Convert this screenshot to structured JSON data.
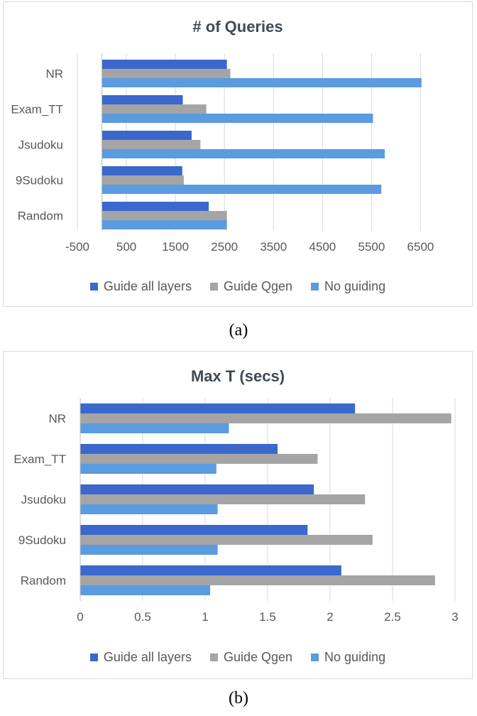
{
  "captions": [
    "(a)",
    "(b)"
  ],
  "legend": [
    {
      "label": "Guide all layers",
      "color": "#3a68cc"
    },
    {
      "label": "Guide Qgen",
      "color": "#a5a5a5"
    },
    {
      "label": "No guiding",
      "color": "#5b9be0"
    }
  ],
  "chart_data": [
    {
      "type": "bar",
      "orientation": "horizontal",
      "title": "# of Queries",
      "categories": [
        "NR",
        "Exam_TT",
        "Jsudoku",
        "9Sudoku",
        "Random"
      ],
      "series": [
        {
          "name": "Guide all layers",
          "values": [
            2550,
            1650,
            1830,
            1640,
            2180
          ]
        },
        {
          "name": "Guide Qgen",
          "values": [
            2620,
            2130,
            2010,
            1670,
            2550
          ]
        },
        {
          "name": "No guiding",
          "values": [
            6520,
            5530,
            5770,
            5700,
            2550
          ]
        }
      ],
      "xlim": [
        -500,
        7000
      ],
      "xticks": [
        "-500",
        "500",
        "1500",
        "2500",
        "3500",
        "4500",
        "5500",
        "6500"
      ],
      "grid": true,
      "legend_position": "bottom"
    },
    {
      "type": "bar",
      "orientation": "horizontal",
      "title": "Max T (secs)",
      "categories": [
        "NR",
        "Exam_TT",
        "Jsudoku",
        "9Sudoku",
        "Random"
      ],
      "series": [
        {
          "name": "Guide all layers",
          "values": [
            2.2,
            1.58,
            1.87,
            1.82,
            2.09
          ]
        },
        {
          "name": "Guide Qgen",
          "values": [
            2.97,
            1.9,
            2.28,
            2.34,
            2.84
          ]
        },
        {
          "name": "No guiding",
          "values": [
            1.19,
            1.09,
            1.1,
            1.1,
            1.04
          ]
        }
      ],
      "xlim": [
        0,
        3
      ],
      "xticks": [
        "0",
        "0.5",
        "1",
        "1.5",
        "2",
        "2.5",
        "3"
      ],
      "grid": true,
      "legend_position": "bottom"
    }
  ]
}
